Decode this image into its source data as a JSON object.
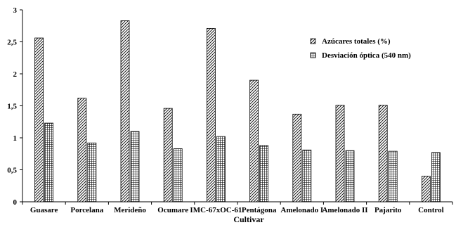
{
  "chart_data": {
    "type": "bar",
    "categories": [
      "Guasare",
      "Porcelana",
      "Merideño",
      "Ocumare",
      "IMC-67xOC-61",
      "Pentágona",
      "Amelonado I",
      "Amelonado II",
      "Pajarito",
      "Control"
    ],
    "series": [
      {
        "name": "Azúcares totales (%)",
        "values": [
          2.56,
          1.62,
          2.83,
          1.46,
          2.71,
          1.9,
          1.37,
          1.51,
          1.51,
          0.4
        ]
      },
      {
        "name": "Desviación óptica (540 nm)",
        "values": [
          1.23,
          0.92,
          1.1,
          0.83,
          1.02,
          0.88,
          0.81,
          0.8,
          0.79,
          0.77
        ]
      }
    ],
    "xlabel": "Cultivar",
    "ylabel": "",
    "ylim": [
      0,
      3
    ],
    "yticks": [
      {
        "value": 0,
        "label": "0"
      },
      {
        "value": 0.5,
        "label": "0,5"
      },
      {
        "value": 1,
        "label": "1"
      },
      {
        "value": 1.5,
        "label": "1,5"
      },
      {
        "value": 2,
        "label": "2"
      },
      {
        "value": 2.5,
        "label": "2,5"
      },
      {
        "value": 3,
        "label": "3"
      }
    ],
    "grid": false,
    "legend_position": "top-right",
    "colors": {
      "axis": "#000000",
      "bar_fill": "#ffffff",
      "bar_stroke": "#000000"
    }
  }
}
